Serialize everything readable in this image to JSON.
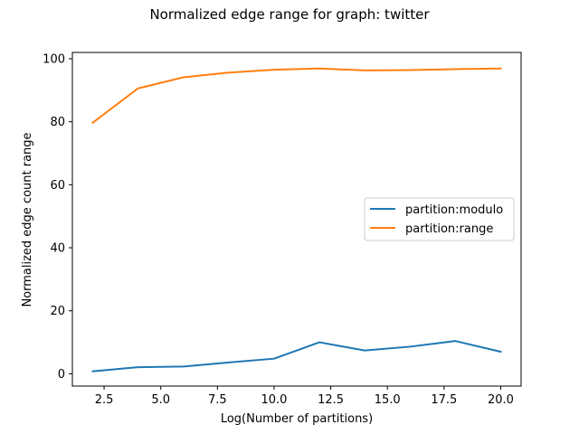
{
  "chart_data": {
    "type": "line",
    "title": "Normalized edge range for graph: twitter",
    "xlabel": "Log(Number of partitions)",
    "ylabel": "Normalized edge count range",
    "xlim": [
      1.1,
      20.9
    ],
    "ylim": [
      -3.9,
      102
    ],
    "xticks": [
      2.5,
      5.0,
      7.5,
      10.0,
      12.5,
      15.0,
      17.5,
      20.0
    ],
    "xtick_labels": [
      "2.5",
      "5.0",
      "7.5",
      "10.0",
      "12.5",
      "15.0",
      "17.5",
      "20.0"
    ],
    "yticks": [
      0,
      20,
      40,
      60,
      80,
      100
    ],
    "ytick_labels": [
      "0",
      "20",
      "40",
      "60",
      "80",
      "100"
    ],
    "grid": false,
    "legend_position": "center-right",
    "x": [
      2,
      4,
      6,
      8,
      10,
      12,
      14,
      16,
      18,
      20
    ],
    "series": [
      {
        "name": "partition:modulo",
        "color": "#1f77b4",
        "values": [
          0.8,
          2.1,
          2.3,
          3.6,
          4.8,
          10.0,
          7.4,
          8.6,
          10.4,
          7.0
        ]
      },
      {
        "name": "partition:range",
        "color": "#ff7f0e",
        "values": [
          79.7,
          90.6,
          94.1,
          95.6,
          96.5,
          96.9,
          96.3,
          96.4,
          96.7,
          96.9
        ]
      }
    ]
  }
}
